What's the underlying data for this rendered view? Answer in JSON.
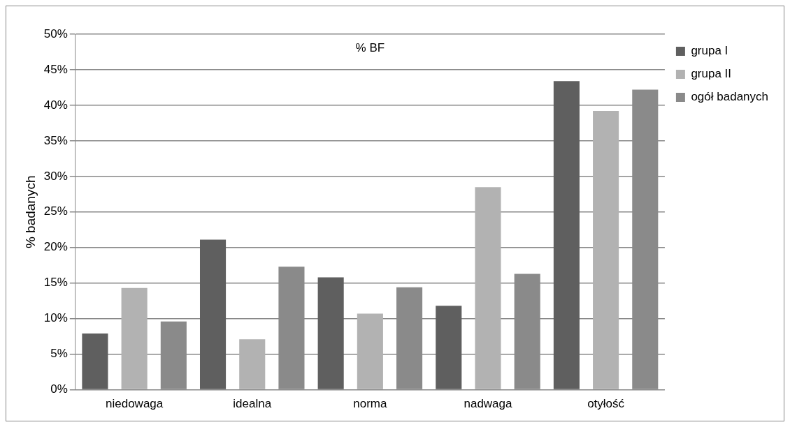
{
  "chart_data": {
    "type": "bar",
    "title": "% BF",
    "ylabel": "% badanych",
    "categories": [
      "niedowaga",
      "idealna",
      "norma",
      "nadwaga",
      "otyłość"
    ],
    "series": [
      {
        "name": "grupa I",
        "color": "#5f5f5f",
        "values": [
          7.9,
          21.1,
          15.8,
          11.8,
          43.4
        ]
      },
      {
        "name": "grupa II",
        "color": "#b2b2b2",
        "values": [
          14.3,
          7.1,
          10.7,
          28.5,
          39.2
        ]
      },
      {
        "name": "ogół badanych",
        "color": "#8a8a8a",
        "values": [
          9.6,
          17.3,
          14.4,
          16.3,
          42.2
        ]
      }
    ],
    "ylim": [
      0,
      50
    ],
    "yticks": [
      {
        "value": 0,
        "label": "0%"
      },
      {
        "value": 5,
        "label": "5%"
      },
      {
        "value": 10,
        "label": "10%"
      },
      {
        "value": 15,
        "label": "15%"
      },
      {
        "value": 20,
        "label": "20%"
      },
      {
        "value": 25,
        "label": "25%"
      },
      {
        "value": 30,
        "label": "30%"
      },
      {
        "value": 35,
        "label": "35%"
      },
      {
        "value": 40,
        "label": "40%"
      },
      {
        "value": 45,
        "label": "45%"
      },
      {
        "value": 50,
        "label": "50%"
      }
    ],
    "grid": "y",
    "legend": "top right"
  }
}
